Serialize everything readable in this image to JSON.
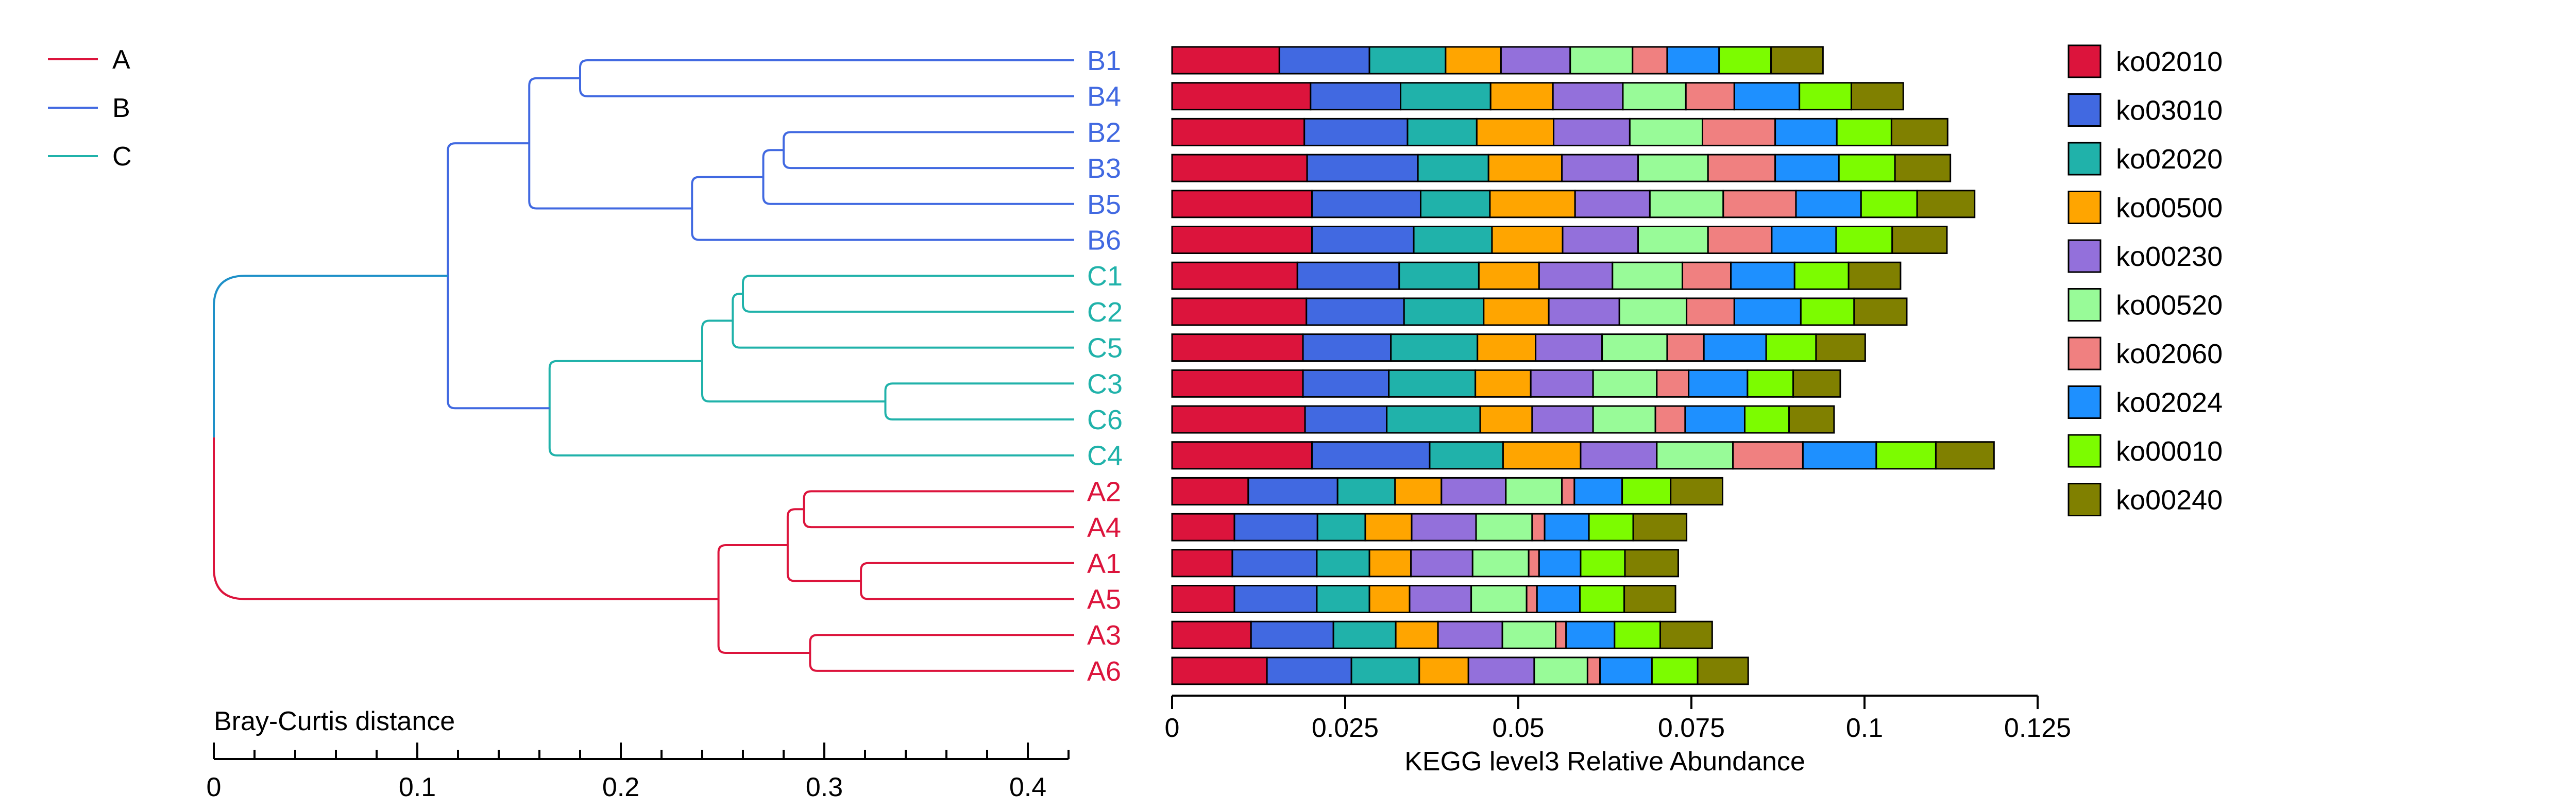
{
  "chart_data": [
    {
      "type": "dendrogram",
      "xlabel": "Bray-Curtis distance",
      "xticks": [
        0,
        0.1,
        0.2,
        0.3,
        0.4
      ],
      "xlim": [
        0,
        0.42
      ],
      "minor_tick_step": 0.02,
      "groups": [
        {
          "name": "A",
          "color": "#dc143c"
        },
        {
          "name": "B",
          "color": "#4169e1"
        },
        {
          "name": "C",
          "color": "#20b2aa"
        }
      ],
      "root_color": "#1e90c8",
      "leaves": [
        {
          "label": "B1",
          "group": "B"
        },
        {
          "label": "B4",
          "group": "B"
        },
        {
          "label": "B2",
          "group": "B"
        },
        {
          "label": "B3",
          "group": "B"
        },
        {
          "label": "B5",
          "group": "B"
        },
        {
          "label": "B6",
          "group": "B"
        },
        {
          "label": "C1",
          "group": "C"
        },
        {
          "label": "C2",
          "group": "C"
        },
        {
          "label": "C5",
          "group": "C"
        },
        {
          "label": "C3",
          "group": "C"
        },
        {
          "label": "C6",
          "group": "C"
        },
        {
          "label": "C4",
          "group": "C"
        },
        {
          "label": "A2",
          "group": "A"
        },
        {
          "label": "A4",
          "group": "A"
        },
        {
          "label": "A1",
          "group": "A"
        },
        {
          "label": "A5",
          "group": "A"
        },
        {
          "label": "A3",
          "group": "A"
        },
        {
          "label": "A6",
          "group": "A"
        }
      ],
      "merges": [
        {
          "children": [
            0,
            1
          ],
          "height": 0.18,
          "group": "B"
        },
        {
          "children": [
            2,
            3
          ],
          "height": 0.28,
          "group": "B"
        },
        {
          "children": [
            "m1",
            4
          ],
          "height": 0.27,
          "group": "B"
        },
        {
          "children": [
            "m2",
            5
          ],
          "height": 0.235,
          "group": "B"
        },
        {
          "children": [
            "m0",
            "m3"
          ],
          "height": 0.155,
          "group": "B"
        },
        {
          "children": [
            6,
            7
          ],
          "height": 0.26,
          "group": "C"
        },
        {
          "children": [
            "m5",
            8
          ],
          "height": 0.255,
          "group": "C"
        },
        {
          "children": [
            9,
            10
          ],
          "height": 0.33,
          "group": "C"
        },
        {
          "children": [
            "m6",
            "m7"
          ],
          "height": 0.24,
          "group": "C"
        },
        {
          "children": [
            "m8",
            11
          ],
          "height": 0.165,
          "group": "C"
        },
        {
          "children": [
            "m4",
            "m9"
          ],
          "height": 0.115,
          "group": "B"
        },
        {
          "children": [
            12,
            13
          ],
          "height": 0.29,
          "group": "A"
        },
        {
          "children": [
            14,
            15
          ],
          "height": 0.318,
          "group": "A"
        },
        {
          "children": [
            "m11",
            "m12"
          ],
          "height": 0.282,
          "group": "A"
        },
        {
          "children": [
            16,
            17
          ],
          "height": 0.293,
          "group": "A"
        },
        {
          "children": [
            "m13",
            "m14"
          ],
          "height": 0.248,
          "group": "A"
        },
        {
          "children": [
            "m10",
            "m15"
          ],
          "height": 0.0,
          "group": "root"
        }
      ]
    },
    {
      "type": "bar",
      "orientation": "horizontal",
      "stacked": true,
      "xlabel": "KEGG level3 Relative Abundance",
      "xticks": [
        "0",
        "0.025",
        "0.05",
        "0.075",
        "0.1",
        "0.125"
      ],
      "xlim": [
        0,
        0.125
      ],
      "legend_position": "right",
      "categories": [
        "B1",
        "B4",
        "B2",
        "B3",
        "B5",
        "B6",
        "C1",
        "C2",
        "C5",
        "C3",
        "C6",
        "C4",
        "A2",
        "A4",
        "A1",
        "A5",
        "A3",
        "A6"
      ],
      "series": [
        {
          "name": "ko02010",
          "color": "#dc143c",
          "values": [
            0.0155,
            0.02,
            0.0191,
            0.0195,
            0.0202,
            0.0202,
            0.0181,
            0.0194,
            0.0189,
            0.0189,
            0.0192,
            0.0202,
            0.011,
            0.009,
            0.0087,
            0.009,
            0.0114,
            0.0137
          ]
        },
        {
          "name": "ko03010",
          "color": "#4169e1",
          "values": [
            0.013,
            0.013,
            0.0149,
            0.016,
            0.0157,
            0.0147,
            0.0147,
            0.0141,
            0.0127,
            0.0124,
            0.0118,
            0.017,
            0.0129,
            0.012,
            0.0122,
            0.0119,
            0.0119,
            0.0122
          ]
        },
        {
          "name": "ko02020",
          "color": "#20b2aa",
          "values": [
            0.011,
            0.013,
            0.01,
            0.0102,
            0.01,
            0.0113,
            0.0115,
            0.0115,
            0.0125,
            0.0125,
            0.0135,
            0.0106,
            0.0083,
            0.0069,
            0.0076,
            0.0076,
            0.009,
            0.0098
          ]
        },
        {
          "name": "ko00500",
          "color": "#ffa500",
          "values": [
            0.008,
            0.009,
            0.0111,
            0.0106,
            0.0123,
            0.0102,
            0.0087,
            0.0094,
            0.0084,
            0.008,
            0.0075,
            0.0112,
            0.0067,
            0.0067,
            0.006,
            0.0058,
            0.0061,
            0.0071
          ]
        },
        {
          "name": "ko00230",
          "color": "#9370db",
          "values": [
            0.01,
            0.0101,
            0.011,
            0.011,
            0.0108,
            0.0109,
            0.0106,
            0.0102,
            0.0096,
            0.009,
            0.0088,
            0.011,
            0.0093,
            0.0093,
            0.0089,
            0.0089,
            0.0093,
            0.0095
          ]
        },
        {
          "name": "ko00520",
          "color": "#98fb98",
          "values": [
            0.009,
            0.0091,
            0.0105,
            0.0101,
            0.0106,
            0.0101,
            0.0101,
            0.0097,
            0.0094,
            0.0092,
            0.009,
            0.011,
            0.0081,
            0.0081,
            0.0081,
            0.008,
            0.0077,
            0.0077
          ]
        },
        {
          "name": "ko02060",
          "color": "#f08080",
          "values": [
            0.005,
            0.007,
            0.0105,
            0.0097,
            0.0105,
            0.0092,
            0.007,
            0.0069,
            0.0053,
            0.0046,
            0.0043,
            0.0101,
            0.0018,
            0.0018,
            0.0015,
            0.0015,
            0.0015,
            0.0018
          ]
        },
        {
          "name": "ko02024",
          "color": "#1e90ff",
          "values": [
            0.0075,
            0.0094,
            0.0089,
            0.0092,
            0.0094,
            0.0093,
            0.0092,
            0.0096,
            0.009,
            0.0085,
            0.0086,
            0.0106,
            0.0069,
            0.0064,
            0.006,
            0.0062,
            0.007,
            0.0075
          ]
        },
        {
          "name": "ko00010",
          "color": "#7cfc00",
          "values": [
            0.0075,
            0.0075,
            0.0079,
            0.0081,
            0.0081,
            0.0081,
            0.0078,
            0.0077,
            0.0072,
            0.0066,
            0.0064,
            0.0086,
            0.007,
            0.0064,
            0.0064,
            0.0064,
            0.0066,
            0.0066
          ]
        },
        {
          "name": "ko00240",
          "color": "#808000",
          "values": [
            0.0075,
            0.0075,
            0.0081,
            0.008,
            0.0083,
            0.0079,
            0.0075,
            0.0076,
            0.0071,
            0.0068,
            0.0065,
            0.0084,
            0.0075,
            0.0077,
            0.0077,
            0.0074,
            0.0075,
            0.0073
          ]
        }
      ]
    }
  ]
}
